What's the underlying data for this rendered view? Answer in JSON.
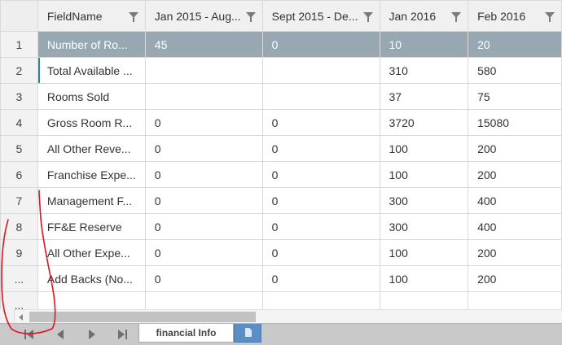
{
  "grid": {
    "columns": [
      {
        "label": "FieldName"
      },
      {
        "label": "Jan 2015 - Aug..."
      },
      {
        "label": "Sept 2015 - De..."
      },
      {
        "label": "Jan 2016"
      },
      {
        "label": "Feb 2016"
      }
    ],
    "rows": [
      {
        "num": "1",
        "cells": [
          "Number of Ro...",
          "45",
          "0",
          "10",
          "20"
        ]
      },
      {
        "num": "2",
        "cells": [
          "Total Available ...",
          "",
          "",
          "310",
          "580"
        ]
      },
      {
        "num": "3",
        "cells": [
          "Rooms Sold",
          "",
          "",
          "37",
          "75"
        ]
      },
      {
        "num": "4",
        "cells": [
          "Gross Room R...",
          "0",
          "0",
          "3720",
          "15080"
        ]
      },
      {
        "num": "5",
        "cells": [
          "All Other Reve...",
          "0",
          "0",
          "100",
          "200"
        ]
      },
      {
        "num": "6",
        "cells": [
          "Franchise Expe...",
          "0",
          "0",
          "100",
          "200"
        ]
      },
      {
        "num": "7",
        "cells": [
          "Management F...",
          "0",
          "0",
          "300",
          "400"
        ]
      },
      {
        "num": "8",
        "cells": [
          "FF&E Reserve",
          "0",
          "0",
          "300",
          "400"
        ]
      },
      {
        "num": "9",
        "cells": [
          "All Other Expe...",
          "0",
          "0",
          "100",
          "200"
        ]
      },
      {
        "num": "...",
        "cells": [
          "Add Backs (No...",
          "0",
          "0",
          "100",
          "200"
        ]
      },
      {
        "num": "...",
        "cells": [
          "",
          "",
          "",
          "",
          ""
        ]
      }
    ]
  },
  "sheet_tabs": {
    "active_label": "financial Info"
  },
  "colors": {
    "selected_row": "#97a8b3",
    "add_tab": "#5b8ec4",
    "annotation": "#e0141e"
  }
}
